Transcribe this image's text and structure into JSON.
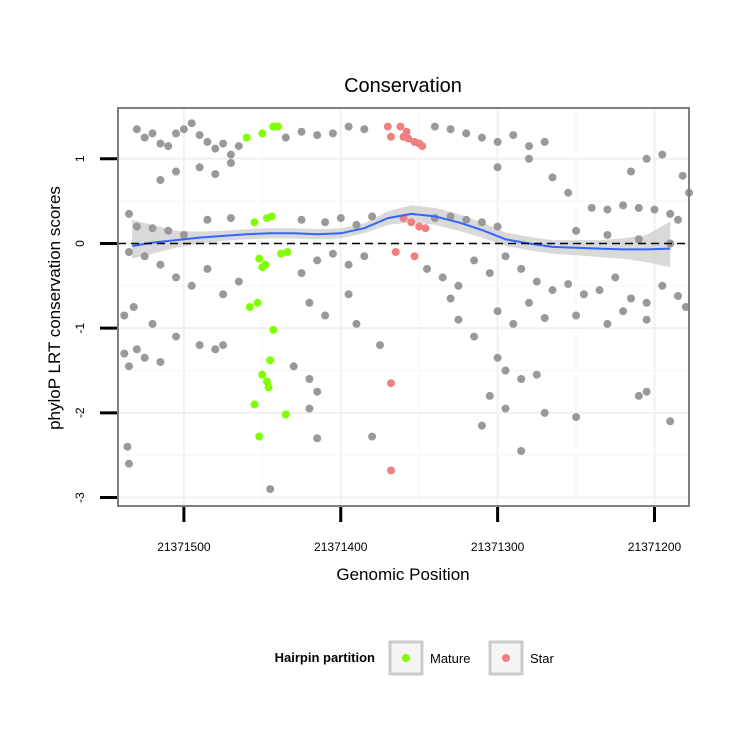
{
  "chart_data": {
    "type": "scatter",
    "title": "Conservation",
    "xlabel": "Genomic Position",
    "ylabel": "phyloP LRT conservation scores",
    "x_reversed": true,
    "xlim": [
      21371542,
      21371178
    ],
    "ylim": [
      -3.1,
      1.6
    ],
    "x_ticks": [
      21371500,
      21371400,
      21371300,
      21371200
    ],
    "x_tick_labels": [
      "21371500",
      "21371400",
      "21371300",
      "21371200"
    ],
    "y_ticks": [
      -3,
      -2,
      -1,
      0,
      1
    ],
    "y_tick_labels": [
      "-3",
      "-2",
      "-1",
      "0",
      "1"
    ],
    "reference_line": {
      "y": 0,
      "style": "dashed",
      "color": "#000000"
    },
    "grid": true,
    "legend": {
      "title": "Hairpin partition",
      "position": "bottom",
      "entries": [
        {
          "label": "Mature",
          "color": "#7fff00"
        },
        {
          "label": "Star",
          "color": "#f08080"
        }
      ]
    },
    "colors": {
      "other": "#999999",
      "mature": "#7fff00",
      "star": "#f08080",
      "smooth": "#3366ff",
      "ribbon": "#cccccc"
    },
    "smooth": {
      "x": [
        21371533,
        21371520,
        21371505,
        21371490,
        21371475,
        21371460,
        21371445,
        21371430,
        21371415,
        21371400,
        21371385,
        21371370,
        21371355,
        21371340,
        21371325,
        21371310,
        21371295,
        21371280,
        21371265,
        21371250,
        21371235,
        21371220,
        21371205,
        21371190
      ],
      "y": [
        -0.03,
        0.01,
        0.04,
        0.07,
        0.09,
        0.11,
        0.12,
        0.12,
        0.11,
        0.12,
        0.18,
        0.3,
        0.35,
        0.32,
        0.25,
        0.16,
        0.05,
        0.0,
        -0.04,
        -0.05,
        -0.06,
        -0.07,
        -0.07,
        -0.06
      ],
      "lower": [
        -0.18,
        -0.12,
        -0.05,
        0.0,
        0.03,
        0.05,
        0.06,
        0.06,
        0.05,
        0.06,
        0.12,
        0.22,
        0.25,
        0.22,
        0.15,
        0.07,
        -0.03,
        -0.08,
        -0.12,
        -0.14,
        -0.16,
        -0.18,
        -0.22,
        -0.28
      ],
      "upper": [
        0.28,
        0.22,
        0.15,
        0.14,
        0.15,
        0.17,
        0.18,
        0.18,
        0.17,
        0.18,
        0.24,
        0.38,
        0.45,
        0.42,
        0.35,
        0.25,
        0.13,
        0.08,
        0.04,
        0.04,
        0.04,
        0.06,
        0.1,
        0.26
      ]
    },
    "series": [
      {
        "name": "Mature",
        "points": [
          [
            21371460,
            1.25
          ],
          [
            21371450,
            1.3
          ],
          [
            21371443,
            1.38
          ],
          [
            21371440,
            1.38
          ],
          [
            21371455,
            0.25
          ],
          [
            21371447,
            0.3
          ],
          [
            21371444,
            0.32
          ],
          [
            21371452,
            -0.18
          ],
          [
            21371450,
            -0.28
          ],
          [
            21371448,
            -0.25
          ],
          [
            21371438,
            -0.12
          ],
          [
            21371434,
            -0.1
          ],
          [
            21371458,
            -0.75
          ],
          [
            21371453,
            -0.7
          ],
          [
            21371443,
            -1.02
          ],
          [
            21371445,
            -1.38
          ],
          [
            21371450,
            -1.55
          ],
          [
            21371447,
            -1.63
          ],
          [
            21371446,
            -1.7
          ],
          [
            21371455,
            -1.9
          ],
          [
            21371452,
            -2.28
          ],
          [
            21371435,
            -2.02
          ]
        ]
      },
      {
        "name": "Star",
        "points": [
          [
            21371370,
            1.38
          ],
          [
            21371362,
            1.38
          ],
          [
            21371358,
            1.32
          ],
          [
            21371368,
            1.26
          ],
          [
            21371360,
            1.26
          ],
          [
            21371357,
            1.24
          ],
          [
            21371353,
            1.2
          ],
          [
            21371350,
            1.18
          ],
          [
            21371348,
            1.15
          ],
          [
            21371360,
            0.3
          ],
          [
            21371355,
            0.25
          ],
          [
            21371350,
            0.2
          ],
          [
            21371346,
            0.18
          ],
          [
            21371365,
            -0.1
          ],
          [
            21371353,
            -0.15
          ],
          [
            21371368,
            -1.65
          ],
          [
            21371368,
            -2.68
          ]
        ]
      },
      {
        "name": "",
        "points": [
          [
            21371530,
            1.35
          ],
          [
            21371525,
            1.25
          ],
          [
            21371520,
            1.3
          ],
          [
            21371515,
            1.18
          ],
          [
            21371510,
            1.15
          ],
          [
            21371505,
            1.3
          ],
          [
            21371500,
            1.35
          ],
          [
            21371495,
            1.42
          ],
          [
            21371490,
            1.28
          ],
          [
            21371485,
            1.2
          ],
          [
            21371480,
            1.12
          ],
          [
            21371475,
            1.18
          ],
          [
            21371470,
            1.05
          ],
          [
            21371465,
            1.15
          ],
          [
            21371435,
            1.25
          ],
          [
            21371425,
            1.32
          ],
          [
            21371415,
            1.28
          ],
          [
            21371405,
            1.3
          ],
          [
            21371395,
            1.38
          ],
          [
            21371385,
            1.35
          ],
          [
            21371340,
            1.38
          ],
          [
            21371330,
            1.35
          ],
          [
            21371320,
            1.3
          ],
          [
            21371310,
            1.25
          ],
          [
            21371300,
            1.2
          ],
          [
            21371290,
            1.28
          ],
          [
            21371280,
            1.15
          ],
          [
            21371270,
            1.2
          ],
          [
            21371515,
            0.75
          ],
          [
            21371505,
            0.85
          ],
          [
            21371490,
            0.9
          ],
          [
            21371480,
            0.82
          ],
          [
            21371470,
            0.95
          ],
          [
            21371300,
            0.9
          ],
          [
            21371280,
            1.0
          ],
          [
            21371265,
            0.78
          ],
          [
            21371255,
            0.6
          ],
          [
            21371240,
            0.42
          ],
          [
            21371230,
            0.4
          ],
          [
            21371220,
            0.45
          ],
          [
            21371210,
            0.42
          ],
          [
            21371200,
            0.4
          ],
          [
            21371190,
            0.35
          ],
          [
            21371185,
            0.28
          ],
          [
            21371195,
            1.05
          ],
          [
            21371205,
            1.0
          ],
          [
            21371215,
            0.85
          ],
          [
            21371182,
            0.8
          ],
          [
            21371178,
            0.6
          ],
          [
            21371535,
            0.35
          ],
          [
            21371530,
            0.2
          ],
          [
            21371520,
            0.18
          ],
          [
            21371510,
            0.15
          ],
          [
            21371500,
            0.1
          ],
          [
            21371485,
            0.28
          ],
          [
            21371470,
            0.3
          ],
          [
            21371425,
            0.28
          ],
          [
            21371410,
            0.25
          ],
          [
            21371400,
            0.3
          ],
          [
            21371390,
            0.22
          ],
          [
            21371380,
            0.32
          ],
          [
            21371340,
            0.3
          ],
          [
            21371330,
            0.32
          ],
          [
            21371320,
            0.28
          ],
          [
            21371310,
            0.25
          ],
          [
            21371300,
            0.2
          ],
          [
            21371250,
            0.15
          ],
          [
            21371230,
            0.1
          ],
          [
            21371210,
            0.05
          ],
          [
            21371190,
            0.0
          ],
          [
            21371535,
            -0.1
          ],
          [
            21371525,
            -0.15
          ],
          [
            21371515,
            -0.25
          ],
          [
            21371505,
            -0.4
          ],
          [
            21371495,
            -0.5
          ],
          [
            21371485,
            -0.3
          ],
          [
            21371475,
            -0.6
          ],
          [
            21371465,
            -0.45
          ],
          [
            21371425,
            -0.35
          ],
          [
            21371415,
            -0.2
          ],
          [
            21371405,
            -0.12
          ],
          [
            21371395,
            -0.25
          ],
          [
            21371385,
            -0.15
          ],
          [
            21371345,
            -0.3
          ],
          [
            21371335,
            -0.4
          ],
          [
            21371325,
            -0.5
          ],
          [
            21371315,
            -0.2
          ],
          [
            21371305,
            -0.35
          ],
          [
            21371295,
            -0.15
          ],
          [
            21371285,
            -0.3
          ],
          [
            21371275,
            -0.45
          ],
          [
            21371265,
            -0.55
          ],
          [
            21371255,
            -0.48
          ],
          [
            21371245,
            -0.6
          ],
          [
            21371235,
            -0.55
          ],
          [
            21371225,
            -0.4
          ],
          [
            21371215,
            -0.65
          ],
          [
            21371205,
            -0.7
          ],
          [
            21371195,
            -0.5
          ],
          [
            21371185,
            -0.62
          ],
          [
            21371180,
            -0.75
          ],
          [
            21371538,
            -0.85
          ],
          [
            21371532,
            -0.75
          ],
          [
            21371520,
            -0.95
          ],
          [
            21371505,
            -1.1
          ],
          [
            21371490,
            -1.2
          ],
          [
            21371480,
            -1.25
          ],
          [
            21371475,
            -1.2
          ],
          [
            21371420,
            -0.7
          ],
          [
            21371410,
            -0.85
          ],
          [
            21371395,
            -0.6
          ],
          [
            21371390,
            -0.95
          ],
          [
            21371330,
            -0.65
          ],
          [
            21371325,
            -0.9
          ],
          [
            21371315,
            -1.1
          ],
          [
            21371300,
            -0.8
          ],
          [
            21371290,
            -0.95
          ],
          [
            21371280,
            -0.7
          ],
          [
            21371270,
            -0.88
          ],
          [
            21371250,
            -0.85
          ],
          [
            21371230,
            -0.95
          ],
          [
            21371220,
            -0.8
          ],
          [
            21371205,
            -0.9
          ],
          [
            21371538,
            -1.3
          ],
          [
            21371535,
            -1.45
          ],
          [
            21371530,
            -1.25
          ],
          [
            21371525,
            -1.35
          ],
          [
            21371515,
            -1.4
          ],
          [
            21371430,
            -1.45
          ],
          [
            21371420,
            -1.6
          ],
          [
            21371415,
            -1.75
          ],
          [
            21371375,
            -1.2
          ],
          [
            21371300,
            -1.35
          ],
          [
            21371295,
            -1.5
          ],
          [
            21371285,
            -1.6
          ],
          [
            21371275,
            -1.55
          ],
          [
            21371305,
            -1.8
          ],
          [
            21371295,
            -1.95
          ],
          [
            21371270,
            -2.0
          ],
          [
            21371250,
            -2.05
          ],
          [
            21371210,
            -1.8
          ],
          [
            21371205,
            -1.75
          ],
          [
            21371190,
            -2.1
          ],
          [
            21371536,
            -2.4
          ],
          [
            21371535,
            -2.6
          ],
          [
            21371420,
            -1.95
          ],
          [
            21371415,
            -2.3
          ],
          [
            21371380,
            -2.28
          ],
          [
            21371310,
            -2.15
          ],
          [
            21371285,
            -2.45
          ],
          [
            21371445,
            -2.9
          ]
        ]
      }
    ]
  }
}
